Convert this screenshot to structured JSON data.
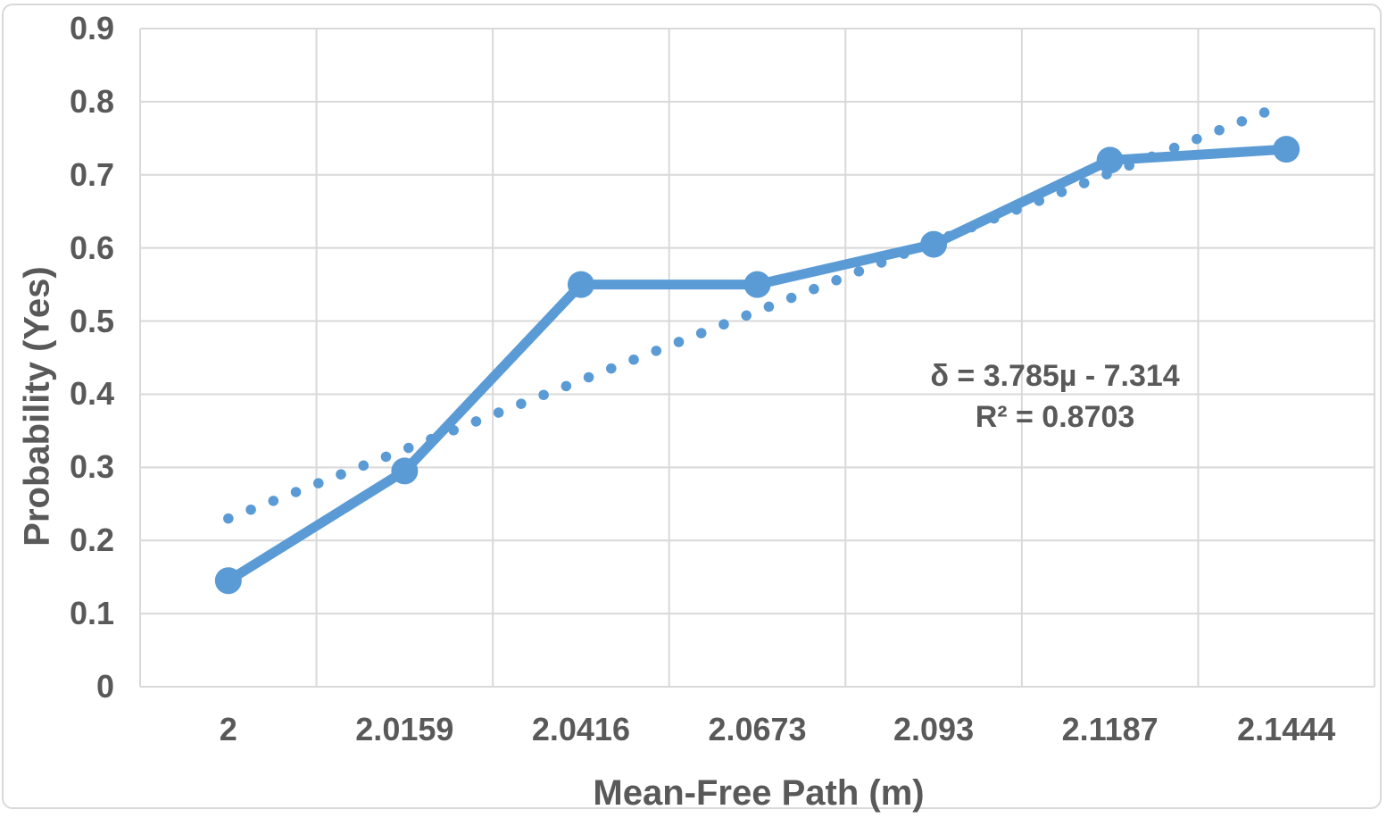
{
  "chart_data": {
    "type": "line",
    "title": "",
    "xlabel": "Mean-Free Path (m)",
    "ylabel": "Probability (Yes)",
    "categories": [
      "2",
      "2.0159",
      "2.0416",
      "2.0673",
      "2.093",
      "2.1187",
      "2.1444"
    ],
    "series": [
      {
        "name": "Probability (Yes)",
        "type": "line-with-markers",
        "values": [
          0.145,
          0.295,
          0.55,
          0.55,
          0.605,
          0.72,
          0.735
        ]
      },
      {
        "name": "Linear trendline",
        "type": "dotted-trendline",
        "start_value": 0.23,
        "end_value": 0.797
      }
    ],
    "ylim": [
      0,
      0.9
    ],
    "ytick_step": 0.1,
    "yticks": [
      "0",
      "0.1",
      "0.2",
      "0.3",
      "0.4",
      "0.5",
      "0.6",
      "0.7",
      "0.8",
      "0.9"
    ],
    "grid": true,
    "legend": "none",
    "annotation": {
      "line1": "δ = 3.785µ - 7.314",
      "line2": "R² = 0.8703"
    }
  },
  "colors": {
    "series": "#5B9BD5",
    "gridline": "#d9d9d9",
    "text": "#595959",
    "background": "#ffffff"
  }
}
